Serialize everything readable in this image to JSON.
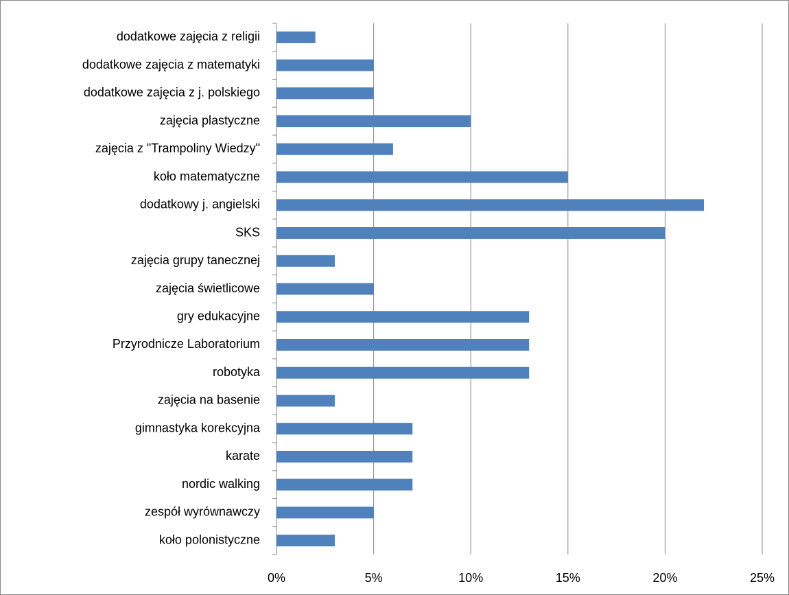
{
  "chart_data": {
    "type": "barh",
    "categories": [
      "dodatkowe zajęcia z religii",
      "dodatkowe zajęcia z matematyki",
      "dodatkowe zajęcia z j. polskiego",
      "zajęcia plastyczne",
      "zajęcia z \"Trampoliny Wiedzy\"",
      "koło matematyczne",
      "dodatkowy j.  angielski",
      "SKS",
      "zajęcia grupy tanecznej",
      "zajęcia świetlicowe",
      "gry edukacyjne",
      "Przyrodnicze Laboratorium",
      "robotyka",
      "zajęcia na basenie",
      "gimnastyka korekcyjna",
      "karate",
      "nordic walking",
      "zespół wyrównawczy",
      "koło polonistyczne"
    ],
    "values": [
      2,
      5,
      5,
      10,
      6,
      15,
      22,
      20,
      3,
      5,
      13,
      13,
      13,
      3,
      7,
      7,
      7,
      5,
      3
    ],
    "color": "#4f81bd",
    "xlim": [
      0,
      25
    ],
    "xticks": [
      {
        "value": 0,
        "label": "0%"
      },
      {
        "value": 5,
        "label": "5%"
      },
      {
        "value": 10,
        "label": "10%"
      },
      {
        "value": 15,
        "label": "15%"
      },
      {
        "value": 20,
        "label": "20%"
      },
      {
        "value": 25,
        "label": "25%"
      }
    ],
    "grid": true
  }
}
